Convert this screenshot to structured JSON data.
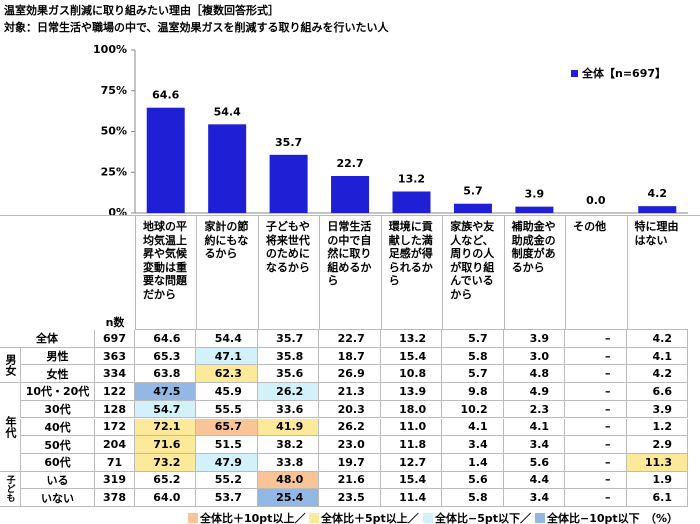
{
  "title": "温室効果ガス削減に取り組みたい理由［複数回答形式］",
  "subtitle": "対象：日常生活や職場の中で、温室効果ガスを削減する取り組みを行いたい人",
  "chart_data": {
    "type": "bar",
    "categories": [
      "地球の平均気温上昇や気候変動は重要な問題だから",
      "家計の節約にもなるから",
      "子どもや将来世代のためになるから",
      "日常生活の中で自然に取り組めるから",
      "環境に貢献した満足感が得られるから",
      "家族や友人など、周りの人が取り組んでいるから",
      "補助金や助成金の制度があるから",
      "その他",
      "特に理由はない"
    ],
    "series": [
      {
        "name": "全体【n=697】",
        "color": "#1f1fd6",
        "values": [
          64.6,
          54.4,
          35.7,
          22.7,
          13.2,
          5.7,
          3.9,
          0.0,
          4.2
        ],
        "value_labels": [
          "64.6",
          "54.4",
          "35.7",
          "22.7",
          "13.2",
          "5.7",
          "3.9",
          "0.0",
          "4.2"
        ]
      }
    ],
    "ylim": [
      0,
      100
    ],
    "yticks": [
      {
        "value": 0,
        "label": "0%"
      },
      {
        "value": 25,
        "label": "25%"
      },
      {
        "value": 50,
        "label": "50%"
      },
      {
        "value": 75,
        "label": "75%"
      },
      {
        "value": 100,
        "label": "100%"
      }
    ],
    "legend": "upper right"
  },
  "table": {
    "n_header": "n数",
    "unit": "（%）",
    "sections": [
      {
        "rows": [
          {
            "label": "全体",
            "n": 697,
            "cells": [
              "64.6",
              "54.4",
              "35.7",
              "22.7",
              "13.2",
              "5.7",
              "3.9",
              "–",
              "4.2"
            ],
            "cell_colors": [
              null,
              null,
              null,
              null,
              null,
              null,
              null,
              null,
              null
            ]
          }
        ]
      },
      {
        "label": "男女",
        "rows": [
          {
            "label": "男性",
            "n": 363,
            "cells": [
              "65.3",
              "47.1",
              "35.8",
              "18.7",
              "15.4",
              "5.8",
              "3.0",
              "–",
              "4.1"
            ],
            "cell_colors": [
              null,
              "#d2f1fb",
              null,
              null,
              null,
              null,
              null,
              null,
              null
            ]
          },
          {
            "label": "女性",
            "n": 334,
            "cells": [
              "63.8",
              "62.3",
              "35.6",
              "26.9",
              "10.8",
              "5.7",
              "4.8",
              "–",
              "4.2"
            ],
            "cell_colors": [
              null,
              "#fde99a",
              null,
              null,
              null,
              null,
              null,
              null,
              null
            ]
          }
        ]
      },
      {
        "label": "年代",
        "rows": [
          {
            "label": "10代・20代",
            "n": 122,
            "cells": [
              "47.5",
              "45.9",
              "26.2",
              "21.3",
              "13.9",
              "9.8",
              "4.9",
              "–",
              "6.6"
            ],
            "cell_colors": [
              "#93b8e6",
              null,
              "#d2f1fb",
              null,
              null,
              null,
              null,
              null,
              null
            ]
          },
          {
            "label": "30代",
            "n": 128,
            "cells": [
              "54.7",
              "55.5",
              "33.6",
              "20.3",
              "18.0",
              "10.2",
              "2.3",
              "–",
              "3.9"
            ],
            "cell_colors": [
              "#d2f1fb",
              null,
              null,
              null,
              null,
              null,
              null,
              null,
              null
            ]
          },
          {
            "label": "40代",
            "n": 172,
            "cells": [
              "72.1",
              "65.7",
              "41.9",
              "26.2",
              "11.0",
              "4.1",
              "4.1",
              "–",
              "1.2"
            ],
            "cell_colors": [
              "#fde99a",
              "#f9c596",
              "#fde99a",
              null,
              null,
              null,
              null,
              null,
              null
            ]
          },
          {
            "label": "50代",
            "n": 204,
            "cells": [
              "71.6",
              "51.5",
              "38.2",
              "23.0",
              "11.8",
              "3.4",
              "3.4",
              "–",
              "2.9"
            ],
            "cell_colors": [
              "#fde99a",
              null,
              null,
              null,
              null,
              null,
              null,
              null,
              null
            ]
          },
          {
            "label": "60代",
            "n": 71,
            "cells": [
              "73.2",
              "47.9",
              "33.8",
              "19.7",
              "12.7",
              "1.4",
              "5.6",
              "–",
              "11.3"
            ],
            "cell_colors": [
              "#fde99a",
              "#d2f1fb",
              null,
              null,
              null,
              null,
              null,
              null,
              "#fde99a"
            ]
          }
        ]
      },
      {
        "label": "子ども",
        "rows": [
          {
            "label": "いる",
            "n": 319,
            "cells": [
              "65.2",
              "55.2",
              "48.0",
              "21.6",
              "15.4",
              "5.6",
              "4.4",
              "–",
              "1.9"
            ],
            "cell_colors": [
              null,
              null,
              "#f9c596",
              null,
              null,
              null,
              null,
              null,
              null
            ]
          },
          {
            "label": "いない",
            "n": 378,
            "cells": [
              "64.0",
              "53.7",
              "25.4",
              "23.5",
              "11.4",
              "5.8",
              "3.4",
              "–",
              "6.1"
            ],
            "cell_colors": [
              null,
              null,
              "#93b8e6",
              null,
              null,
              null,
              null,
              null,
              null
            ]
          }
        ]
      }
    ],
    "highlight_legend": [
      {
        "label": "全体比＋10pt以上／",
        "color": "#f9c596"
      },
      {
        "label": "全体比＋5pt以上／",
        "color": "#fde99a"
      },
      {
        "label": "全体比−5pt以下／",
        "color": "#d2f1fb"
      },
      {
        "label": "全体比−10pt以下",
        "color": "#93b8e6"
      }
    ]
  }
}
